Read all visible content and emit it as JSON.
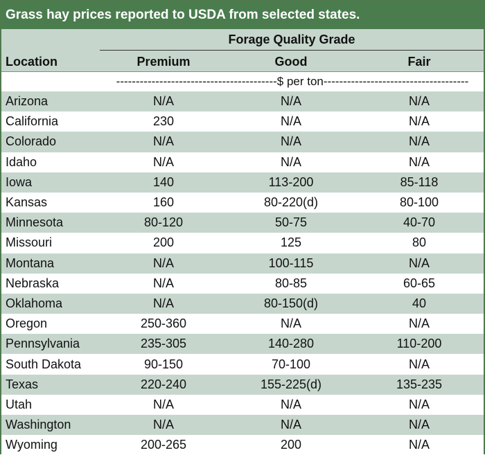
{
  "title": "Grass hay prices reported to USDA from selected states.",
  "group_header": "Forage Quality Grade",
  "columns": {
    "location": "Location",
    "premium": "Premium",
    "good": "Good",
    "fair": "Fair"
  },
  "units": "-----------------------------------------$ per ton-------------------------------------",
  "colors": {
    "title_bg": "#4a7c4e",
    "stripe": "#c6d6cd"
  },
  "rows": [
    {
      "location": "Arizona",
      "premium": "N/A",
      "good": "N/A",
      "fair": "N/A"
    },
    {
      "location": "California",
      "premium": "230",
      "good": "N/A",
      "fair": "N/A"
    },
    {
      "location": "Colorado",
      "premium": "N/A",
      "good": "N/A",
      "fair": "N/A"
    },
    {
      "location": "Idaho",
      "premium": "N/A",
      "good": "N/A",
      "fair": "N/A"
    },
    {
      "location": "Iowa",
      "premium": "140",
      "good": "113-200",
      "fair": "85-118"
    },
    {
      "location": "Kansas",
      "premium": "160",
      "good": "80-220(d)",
      "fair": "80-100"
    },
    {
      "location": "Minnesota",
      "premium": "80-120",
      "good": "50-75",
      "fair": "40-70"
    },
    {
      "location": "Missouri",
      "premium": "200",
      "good": "125",
      "fair": "80"
    },
    {
      "location": "Montana",
      "premium": "N/A",
      "good": "100-115",
      "fair": "N/A"
    },
    {
      "location": "Nebraska",
      "premium": "N/A",
      "good": "80-85",
      "fair": "60-65"
    },
    {
      "location": "Oklahoma",
      "premium": "N/A",
      "good": "80-150(d)",
      "fair": "40"
    },
    {
      "location": "Oregon",
      "premium": "250-360",
      "good": "N/A",
      "fair": "N/A"
    },
    {
      "location": "Pennsylvania",
      "premium": "235-305",
      "good": "140-280",
      "fair": "110-200"
    },
    {
      "location": "South Dakota",
      "premium": "90-150",
      "good": "70-100",
      "fair": "N/A"
    },
    {
      "location": "Texas",
      "premium": "220-240",
      "good": "155-225(d)",
      "fair": "135-235"
    },
    {
      "location": "Utah",
      "premium": "N/A",
      "good": "N/A",
      "fair": "N/A"
    },
    {
      "location": "Washington",
      "premium": "N/A",
      "good": "N/A",
      "fair": "N/A"
    },
    {
      "location": "Wyoming",
      "premium": "200-265",
      "good": "200",
      "fair": "N/A"
    }
  ]
}
